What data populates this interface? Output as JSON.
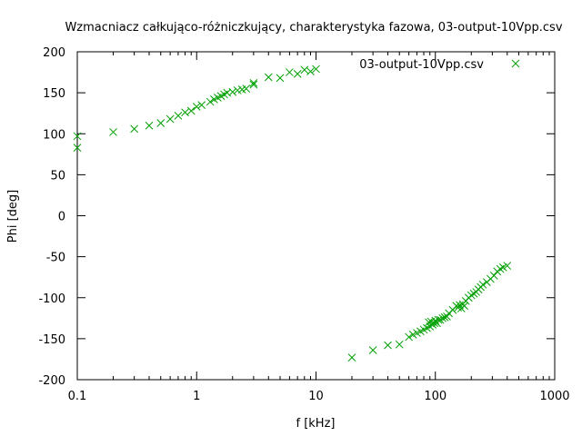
{
  "chart_data": {
    "type": "scatter",
    "title": "Wzmacniacz całkująco-różniczkujący, charakterystyka fazowa, 03-output-10Vpp.csv",
    "xlabel": "f [kHz]",
    "ylabel": "Phi [deg]",
    "x_scale": "log",
    "xlim": [
      0.1,
      1000
    ],
    "ylim": [
      -200,
      200
    ],
    "x_ticks": [
      {
        "value": 0.1,
        "label": "0.1"
      },
      {
        "value": 1,
        "label": "1"
      },
      {
        "value": 10,
        "label": "10"
      },
      {
        "value": 100,
        "label": "100"
      },
      {
        "value": 1000,
        "label": "1000"
      }
    ],
    "y_ticks": [
      {
        "value": 200,
        "label": "200"
      },
      {
        "value": 150,
        "label": "150"
      },
      {
        "value": 100,
        "label": "100"
      },
      {
        "value": 50,
        "label": "50"
      },
      {
        "value": 0,
        "label": "0"
      },
      {
        "value": -50,
        "label": "-50"
      },
      {
        "value": -100,
        "label": "-100"
      },
      {
        "value": -150,
        "label": "-150"
      },
      {
        "value": -200,
        "label": "-200"
      }
    ],
    "grid": false,
    "legend_position": "top-right",
    "marker": "x",
    "series_color": "#00a000",
    "series": [
      {
        "name": "03-output-10Vpp.csv",
        "points": [
          [
            0.1,
            83
          ],
          [
            0.1,
            97
          ],
          [
            0.2,
            102
          ],
          [
            0.3,
            106
          ],
          [
            0.4,
            110
          ],
          [
            0.5,
            113
          ],
          [
            0.6,
            118
          ],
          [
            0.7,
            122
          ],
          [
            0.8,
            126
          ],
          [
            0.9,
            128
          ],
          [
            1.0,
            133
          ],
          [
            1.1,
            135
          ],
          [
            1.3,
            139
          ],
          [
            1.4,
            142
          ],
          [
            1.5,
            144
          ],
          [
            1.6,
            146
          ],
          [
            1.7,
            148
          ],
          [
            1.8,
            150
          ],
          [
            2.0,
            151
          ],
          [
            2.2,
            153
          ],
          [
            2.4,
            154
          ],
          [
            2.6,
            155
          ],
          [
            3.0,
            160
          ],
          [
            3.0,
            162
          ],
          [
            4.0,
            169
          ],
          [
            5.0,
            168
          ],
          [
            6.0,
            175
          ],
          [
            7.0,
            173
          ],
          [
            8.0,
            178
          ],
          [
            9.0,
            176
          ],
          [
            10.0,
            179
          ],
          [
            20,
            -173
          ],
          [
            30,
            -164
          ],
          [
            40,
            -158
          ],
          [
            50,
            -157
          ],
          [
            60,
            -148
          ],
          [
            65,
            -145
          ],
          [
            70,
            -143
          ],
          [
            75,
            -141
          ],
          [
            80,
            -139
          ],
          [
            85,
            -137
          ],
          [
            88,
            -130
          ],
          [
            90,
            -135
          ],
          [
            92,
            -129
          ],
          [
            95,
            -133
          ],
          [
            98,
            -131
          ],
          [
            100,
            -128
          ],
          [
            103,
            -131
          ],
          [
            106,
            -127
          ],
          [
            110,
            -127
          ],
          [
            115,
            -125
          ],
          [
            120,
            -124
          ],
          [
            125,
            -123
          ],
          [
            130,
            -119
          ],
          [
            140,
            -115
          ],
          [
            150,
            -110
          ],
          [
            155,
            -112
          ],
          [
            160,
            -109
          ],
          [
            165,
            -113
          ],
          [
            170,
            -108
          ],
          [
            175,
            -110
          ],
          [
            180,
            -104
          ],
          [
            190,
            -100
          ],
          [
            200,
            -97
          ],
          [
            210,
            -95
          ],
          [
            220,
            -93
          ],
          [
            230,
            -90
          ],
          [
            240,
            -87
          ],
          [
            250,
            -84
          ],
          [
            270,
            -81
          ],
          [
            290,
            -77
          ],
          [
            310,
            -73
          ],
          [
            330,
            -68
          ],
          [
            350,
            -65
          ],
          [
            370,
            -63
          ],
          [
            400,
            -61
          ]
        ]
      }
    ]
  }
}
